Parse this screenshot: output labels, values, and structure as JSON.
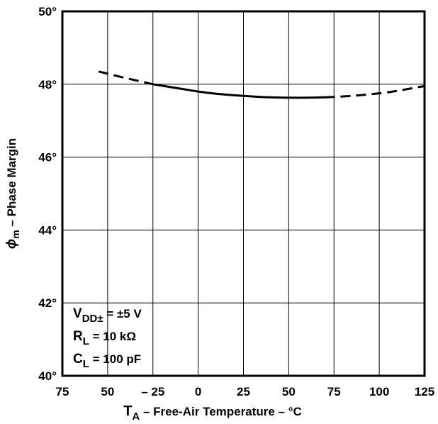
{
  "chart_data": {
    "type": "line",
    "xlabel": {
      "main": "T",
      "sub": "A",
      "rest": " – Free-Air Temperature – °C"
    },
    "ylabel": {
      "symbol": "ϕ",
      "sub": "m",
      "rest": " – Phase Margin"
    },
    "xlim": [
      -75,
      125
    ],
    "ylim": [
      40,
      50
    ],
    "x_ticks": [
      {
        "value": -75,
        "label": "75"
      },
      {
        "value": -50,
        "label": "50"
      },
      {
        "value": -25,
        "label": "– 25"
      },
      {
        "value": 0,
        "label": "0"
      },
      {
        "value": 25,
        "label": "25"
      },
      {
        "value": 50,
        "label": "50"
      },
      {
        "value": 75,
        "label": "75"
      },
      {
        "value": 100,
        "label": "100"
      },
      {
        "value": 125,
        "label": "125"
      }
    ],
    "y_ticks": [
      {
        "value": 40,
        "label": "40°"
      },
      {
        "value": 42,
        "label": "42°"
      },
      {
        "value": 44,
        "label": "44°"
      },
      {
        "value": 46,
        "label": "46°"
      },
      {
        "value": 48,
        "label": "48°"
      },
      {
        "value": 50,
        "label": "50°"
      }
    ],
    "grid": true,
    "series": [
      {
        "style": "dashed",
        "x": [
          -55,
          -40,
          -25
        ],
        "y": [
          48.35,
          48.17,
          48.0
        ]
      },
      {
        "style": "solid",
        "x": [
          -25,
          -10,
          0,
          10,
          25,
          40,
          50,
          60,
          70
        ],
        "y": [
          48.0,
          47.88,
          47.8,
          47.74,
          47.68,
          47.64,
          47.63,
          47.63,
          47.64
        ]
      },
      {
        "style": "dashed",
        "x": [
          70,
          85,
          100,
          110,
          125
        ],
        "y": [
          47.64,
          47.68,
          47.75,
          47.82,
          47.95
        ]
      }
    ],
    "annotations": [
      {
        "main": "V",
        "sub": "DD±",
        "rest": "  =  ±5 V"
      },
      {
        "main": "R",
        "sub": "L",
        "rest": "  =  10 kΩ"
      },
      {
        "main": "C",
        "sub": "L",
        "rest": "  =  100 pF"
      }
    ]
  }
}
